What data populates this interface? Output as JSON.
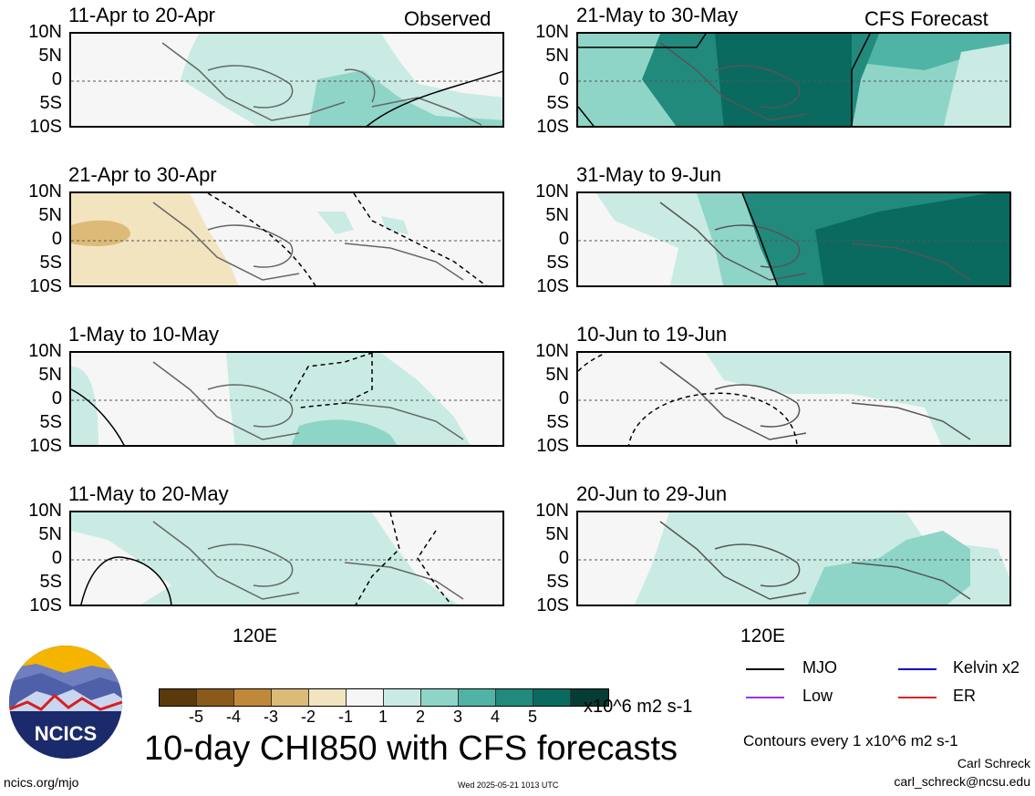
{
  "panels_left": [
    {
      "title": "11-Apr to 20-Apr",
      "tag": "Observed"
    },
    {
      "title": "21-Apr to 30-Apr",
      "tag": ""
    },
    {
      "title": "1-May to 10-May",
      "tag": ""
    },
    {
      "title": "11-May to 20-May",
      "tag": ""
    }
  ],
  "panels_right": [
    {
      "title": "21-May to 30-May",
      "tag": "CFS Forecast"
    },
    {
      "title": "31-May to 9-Jun",
      "tag": ""
    },
    {
      "title": "10-Jun to 19-Jun",
      "tag": ""
    },
    {
      "title": "20-Jun to 29-Jun",
      "tag": ""
    }
  ],
  "lat_labels": [
    "10N",
    "5N",
    "0",
    "5S",
    "10S"
  ],
  "lon_label": "120E",
  "colorbar": {
    "colors": [
      "#5a3a0a",
      "#8b5a1a",
      "#c0893a",
      "#dcbb78",
      "#f2e4bf",
      "#f6f6f6",
      "#c9ebe4",
      "#8ed5c8",
      "#4fb3a5",
      "#218a7d",
      "#0a6a60",
      "#053d35"
    ],
    "ticks": [
      "-5",
      "-4",
      "-3",
      "-2",
      "-1",
      "1",
      "2",
      "3",
      "4",
      "5"
    ],
    "units": "x10^6 m2 s-1"
  },
  "legend": [
    {
      "label": "MJO",
      "color": "#000000"
    },
    {
      "label": "Kelvin x2",
      "color": "#0000cc"
    },
    {
      "label": "Low",
      "color": "#9b30ff"
    },
    {
      "label": "ER",
      "color": "#e02020"
    }
  ],
  "main_title": "10-day CHI850 with CFS forecasts",
  "contours_note": "Contours every 1 x10^6 m2 s-1",
  "author": "Carl Schreck",
  "email": "carl_schreck@ncsu.edu",
  "url": "ncics.org/mjo",
  "timestamp": "Wed 2025-05-21 1013 UTC",
  "logo_text": "NCICS"
}
